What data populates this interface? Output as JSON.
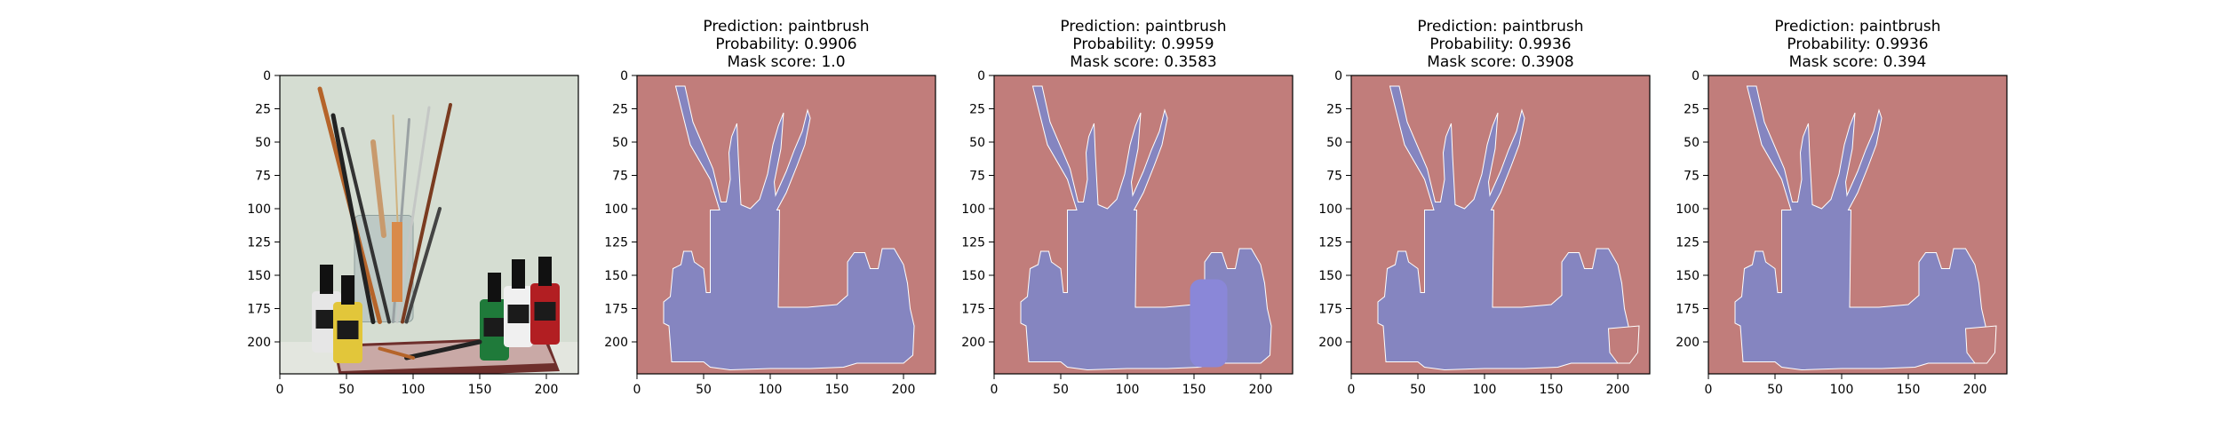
{
  "colors": {
    "background": "#c17d7b",
    "foreground": "#8585c0",
    "foreground_highlight": "#8a87d8",
    "photo_wall": "#d5ddd2",
    "axis": "#000000"
  },
  "chart_data": [
    {
      "type": "image",
      "title_lines": [],
      "content": "photo of paint brushes in a glass jar with ink bottles",
      "xlim": [
        0,
        224
      ],
      "ylim": [
        224,
        0
      ],
      "xticks": [
        0,
        50,
        100,
        150,
        200
      ],
      "yticks": [
        0,
        25,
        50,
        75,
        100,
        125,
        150,
        175,
        200
      ]
    },
    {
      "type": "heatmap",
      "title_lines": [
        "Prediction: paintbrush",
        "Probability: 0.9906",
        "Mask score: 1.0"
      ],
      "prediction": "paintbrush",
      "probability": 0.9906,
      "mask_score": 1.0,
      "xlim": [
        0,
        224
      ],
      "ylim": [
        224,
        0
      ],
      "xticks": [
        0,
        50,
        100,
        150,
        200
      ],
      "yticks": [
        0,
        25,
        50,
        75,
        100,
        125,
        150,
        175,
        200
      ],
      "variant": "full"
    },
    {
      "type": "heatmap",
      "title_lines": [
        "Prediction: paintbrush",
        "Probability: 0.9959",
        "Mask score: 0.3583"
      ],
      "prediction": "paintbrush",
      "probability": 0.9959,
      "mask_score": 0.3583,
      "xlim": [
        0,
        224
      ],
      "ylim": [
        224,
        0
      ],
      "xticks": [
        0,
        50,
        100,
        150,
        200
      ],
      "yticks": [
        0,
        25,
        50,
        75,
        100,
        125,
        150,
        175,
        200
      ],
      "variant": "highlight_bottle"
    },
    {
      "type": "heatmap",
      "title_lines": [
        "Prediction: paintbrush",
        "Probability: 0.9936",
        "Mask score: 0.3908"
      ],
      "prediction": "paintbrush",
      "probability": 0.9936,
      "mask_score": 0.3908,
      "xlim": [
        0,
        224
      ],
      "ylim": [
        224,
        0
      ],
      "xticks": [
        0,
        50,
        100,
        150,
        200
      ],
      "yticks": [
        0,
        25,
        50,
        75,
        100,
        125,
        150,
        175,
        200
      ],
      "variant": "cut_right_bottle"
    },
    {
      "type": "heatmap",
      "title_lines": [
        "Prediction: paintbrush",
        "Probability: 0.9936",
        "Mask score: 0.394"
      ],
      "prediction": "paintbrush",
      "probability": 0.9936,
      "mask_score": 0.394,
      "xlim": [
        0,
        224
      ],
      "ylim": [
        224,
        0
      ],
      "xticks": [
        0,
        50,
        100,
        150,
        200
      ],
      "yticks": [
        0,
        25,
        50,
        75,
        100,
        125,
        150,
        175,
        200
      ],
      "variant": "cut_right_bottle"
    }
  ]
}
